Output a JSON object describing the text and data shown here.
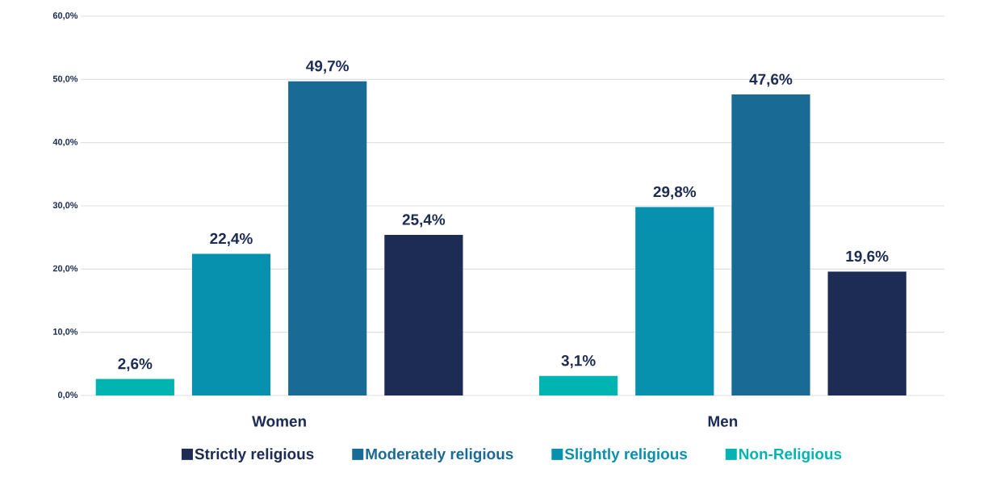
{
  "chart_data": {
    "type": "bar",
    "categories": [
      "Women",
      "Men"
    ],
    "series": [
      {
        "name": "Non-Religious",
        "color": "#00b5b1",
        "values": [
          2.6,
          3.1
        ],
        "value_labels": [
          "2,6%",
          "3,1%"
        ]
      },
      {
        "name": "Slightly religious",
        "color": "#0891ae",
        "values": [
          22.4,
          29.8
        ],
        "value_labels": [
          "22,4%",
          "29,8%"
        ]
      },
      {
        "name": "Moderately religious",
        "color": "#1a6a96",
        "values": [
          49.7,
          47.6
        ],
        "value_labels": [
          "49,7%",
          "47,6%"
        ]
      },
      {
        "name": "Strictly religious",
        "color": "#1c2c54",
        "values": [
          25.4,
          19.6
        ],
        "value_labels": [
          "25,4%",
          "19,6%"
        ]
      }
    ],
    "ylim": [
      0,
      60
    ],
    "yticks": [
      {
        "value": 0,
        "label": "0,0%"
      },
      {
        "value": 10,
        "label": "10,0%"
      },
      {
        "value": 20,
        "label": "20,0%"
      },
      {
        "value": 30,
        "label": "30,0%"
      },
      {
        "value": 40,
        "label": "40,0%"
      },
      {
        "value": 50,
        "label": "50,0%"
      },
      {
        "value": 60,
        "label": "60,0%"
      }
    ],
    "grid": "y",
    "legend": "bottom"
  }
}
